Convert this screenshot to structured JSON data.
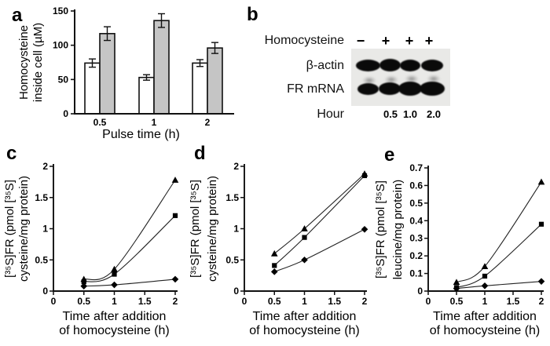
{
  "colors": {
    "ink": "#000000",
    "bar_white_fill": "#ffffff",
    "bar_gray_fill": "#c5c5c5",
    "blot_background": "#e9e9e7"
  },
  "panels": {
    "a": {
      "label": "a"
    },
    "b": {
      "label": "b"
    },
    "c": {
      "label": "c"
    },
    "d": {
      "label": "d"
    },
    "e": {
      "label": "e"
    }
  },
  "blot": {
    "treatment_label": "Homocysteine",
    "treatment_signs": [
      "−",
      "+",
      "+",
      "+"
    ],
    "rows": [
      {
        "label": "β-actin",
        "bands": [
          {
            "w": 31,
            "h": 15,
            "smudge": false
          },
          {
            "w": 27,
            "h": 16,
            "smudge": false
          },
          {
            "w": 26,
            "h": 15,
            "smudge": false
          },
          {
            "w": 28,
            "h": 15,
            "smudge": false
          }
        ]
      },
      {
        "label": "FR mRNA",
        "bands": [
          {
            "w": 27,
            "h": 15,
            "smudge": true
          },
          {
            "w": 28,
            "h": 16,
            "smudge": true
          },
          {
            "w": 30,
            "h": 18,
            "smudge": true
          },
          {
            "w": 32,
            "h": 18,
            "smudge": true
          }
        ]
      }
    ],
    "hour_label": "Hour",
    "hour_values": [
      "0.5",
      "1.0",
      "2.0"
    ]
  },
  "chart_data": [
    {
      "id": "a",
      "type": "bar",
      "categories": [
        "0.5",
        "1",
        "2"
      ],
      "series": [
        {
          "name": "white-bars",
          "fill": "#ffffff",
          "values": [
            74,
            53,
            74
          ],
          "errors": [
            6,
            4,
            5
          ]
        },
        {
          "name": "gray-bars",
          "fill": "#c5c5c5",
          "values": [
            117,
            136,
            96
          ],
          "errors": [
            10,
            10,
            8
          ]
        }
      ],
      "title": "",
      "ylabel_lines": [
        "Homocysteine",
        "inside cell (µM)"
      ],
      "xlabel_lines": [
        "Pulse time (h)"
      ],
      "yticks": [
        0,
        50,
        100,
        150
      ],
      "ylim": [
        0,
        150
      ],
      "grid": false,
      "legend": false
    },
    {
      "id": "c",
      "type": "line",
      "x": [
        0.5,
        1,
        2
      ],
      "series": [
        {
          "name": "triangle-series",
          "marker": "triangle",
          "values": [
            0.19,
            0.35,
            1.78
          ]
        },
        {
          "name": "square-series",
          "marker": "square",
          "values": [
            0.15,
            0.27,
            1.21
          ]
        },
        {
          "name": "diamond-series",
          "marker": "diamond",
          "values": [
            0.08,
            0.1,
            0.19
          ]
        }
      ],
      "title": "",
      "ylabel_lines": [
        "[³⁵S]FR (pmol [³⁵S]",
        "cysteine/mg protein)"
      ],
      "xlabel_lines": [
        "Time after addition",
        "of homocysteine (h)"
      ],
      "yticks": [
        0,
        0.5,
        1,
        1.5,
        2
      ],
      "xticks": [
        0,
        0.5,
        1,
        1.5,
        2
      ],
      "ylim": [
        0,
        2
      ],
      "xlim": [
        0,
        2
      ],
      "grid": false,
      "legend": false
    },
    {
      "id": "d",
      "type": "line",
      "x": [
        0.5,
        1,
        2
      ],
      "series": [
        {
          "name": "triangle-series",
          "marker": "triangle",
          "values": [
            0.6,
            1.0,
            1.88
          ]
        },
        {
          "name": "square-series",
          "marker": "square",
          "values": [
            0.41,
            0.86,
            1.85
          ]
        },
        {
          "name": "diamond-series",
          "marker": "diamond",
          "values": [
            0.31,
            0.5,
            0.99
          ]
        }
      ],
      "title": "",
      "ylabel_lines": [
        "[³⁵S]FR (pmol [³⁵S]",
        "cysteine/mg protein)"
      ],
      "xlabel_lines": [
        "Time after addition",
        "of homocysteine (h)"
      ],
      "yticks": [
        0,
        0.5,
        1,
        1.5,
        2
      ],
      "xticks": [
        0,
        0.5,
        1,
        1.5,
        2
      ],
      "ylim": [
        0,
        2
      ],
      "xlim": [
        0,
        2
      ],
      "grid": false,
      "legend": false
    },
    {
      "id": "e",
      "type": "line",
      "x": [
        0.5,
        1,
        2
      ],
      "series": [
        {
          "name": "triangle-series",
          "marker": "triangle",
          "values": [
            0.05,
            0.14,
            0.62
          ]
        },
        {
          "name": "square-series",
          "marker": "square",
          "values": [
            0.02,
            0.085,
            0.38
          ]
        },
        {
          "name": "diamond-series",
          "marker": "diamond",
          "values": [
            0.015,
            0.03,
            0.055
          ]
        }
      ],
      "title": "",
      "ylabel_lines": [
        "[³⁵S]FR (pmol [³⁵S]",
        "leucine/mg protein)"
      ],
      "xlabel_lines": [
        "Time after addition",
        "of homocysteine (h)"
      ],
      "yticks": [
        0,
        0.1,
        0.2,
        0.3,
        0.4,
        0.5,
        0.6,
        0.7
      ],
      "xticks": [
        0,
        0.5,
        1,
        1.5,
        2
      ],
      "ylim": [
        0,
        0.7
      ],
      "xlim": [
        0,
        2
      ],
      "grid": false,
      "legend": false
    }
  ]
}
